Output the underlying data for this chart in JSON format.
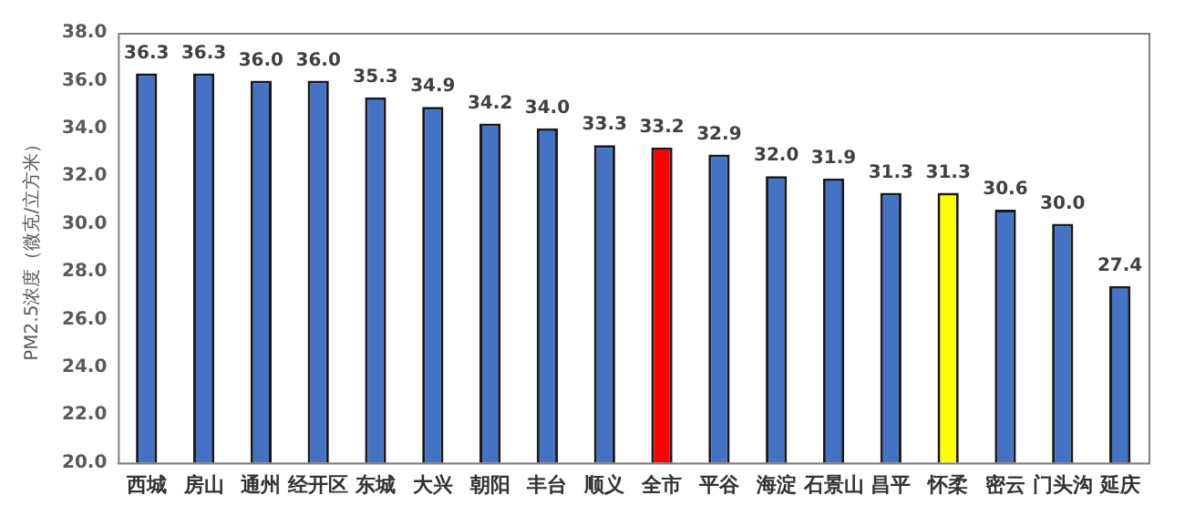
{
  "chart_data": {
    "type": "bar",
    "ylabel": "PM2.5浓度（微克/立方米）",
    "categories": [
      "西城",
      "房山",
      "通州",
      "经开区",
      "东城",
      "大兴",
      "朝阳",
      "丰台",
      "顺义",
      "全市",
      "平谷",
      "海淀",
      "石景山",
      "昌平",
      "怀柔",
      "密云",
      "门头沟",
      "延庆"
    ],
    "values": [
      36.3,
      36.3,
      36.0,
      36.0,
      35.3,
      34.9,
      34.2,
      34.0,
      33.3,
      33.2,
      32.9,
      32.0,
      31.9,
      31.3,
      31.3,
      30.6,
      30.0,
      27.4
    ],
    "value_labels": [
      "36.3",
      "36.3",
      "36.0",
      "36.0",
      "35.3",
      "34.9",
      "34.2",
      "34.0",
      "33.3",
      "33.2",
      "32.9",
      "32.0",
      "31.9",
      "31.3",
      "31.3",
      "30.6",
      "30.0",
      "27.4"
    ],
    "colors": [
      "#4472c4",
      "#4472c4",
      "#4472c4",
      "#4472c4",
      "#4472c4",
      "#4472c4",
      "#4472c4",
      "#4472c4",
      "#4472c4",
      "#ff0000",
      "#4472c4",
      "#4472c4",
      "#4472c4",
      "#4472c4",
      "#ffff00",
      "#4472c4",
      "#4472c4",
      "#4472c4"
    ],
    "ylim": [
      20,
      38
    ],
    "yticks": [
      {
        "value": 20,
        "label": "20.0"
      },
      {
        "value": 22,
        "label": "22.0"
      },
      {
        "value": 24,
        "label": "24.0"
      },
      {
        "value": 26,
        "label": "26.0"
      },
      {
        "value": 28,
        "label": "28.0"
      },
      {
        "value": 30,
        "label": "30.0"
      },
      {
        "value": 32,
        "label": "32.0"
      },
      {
        "value": 34,
        "label": "34.0"
      },
      {
        "value": 36,
        "label": "36.0"
      },
      {
        "value": 38,
        "label": "38.0"
      }
    ],
    "grid": false,
    "legend": false
  }
}
